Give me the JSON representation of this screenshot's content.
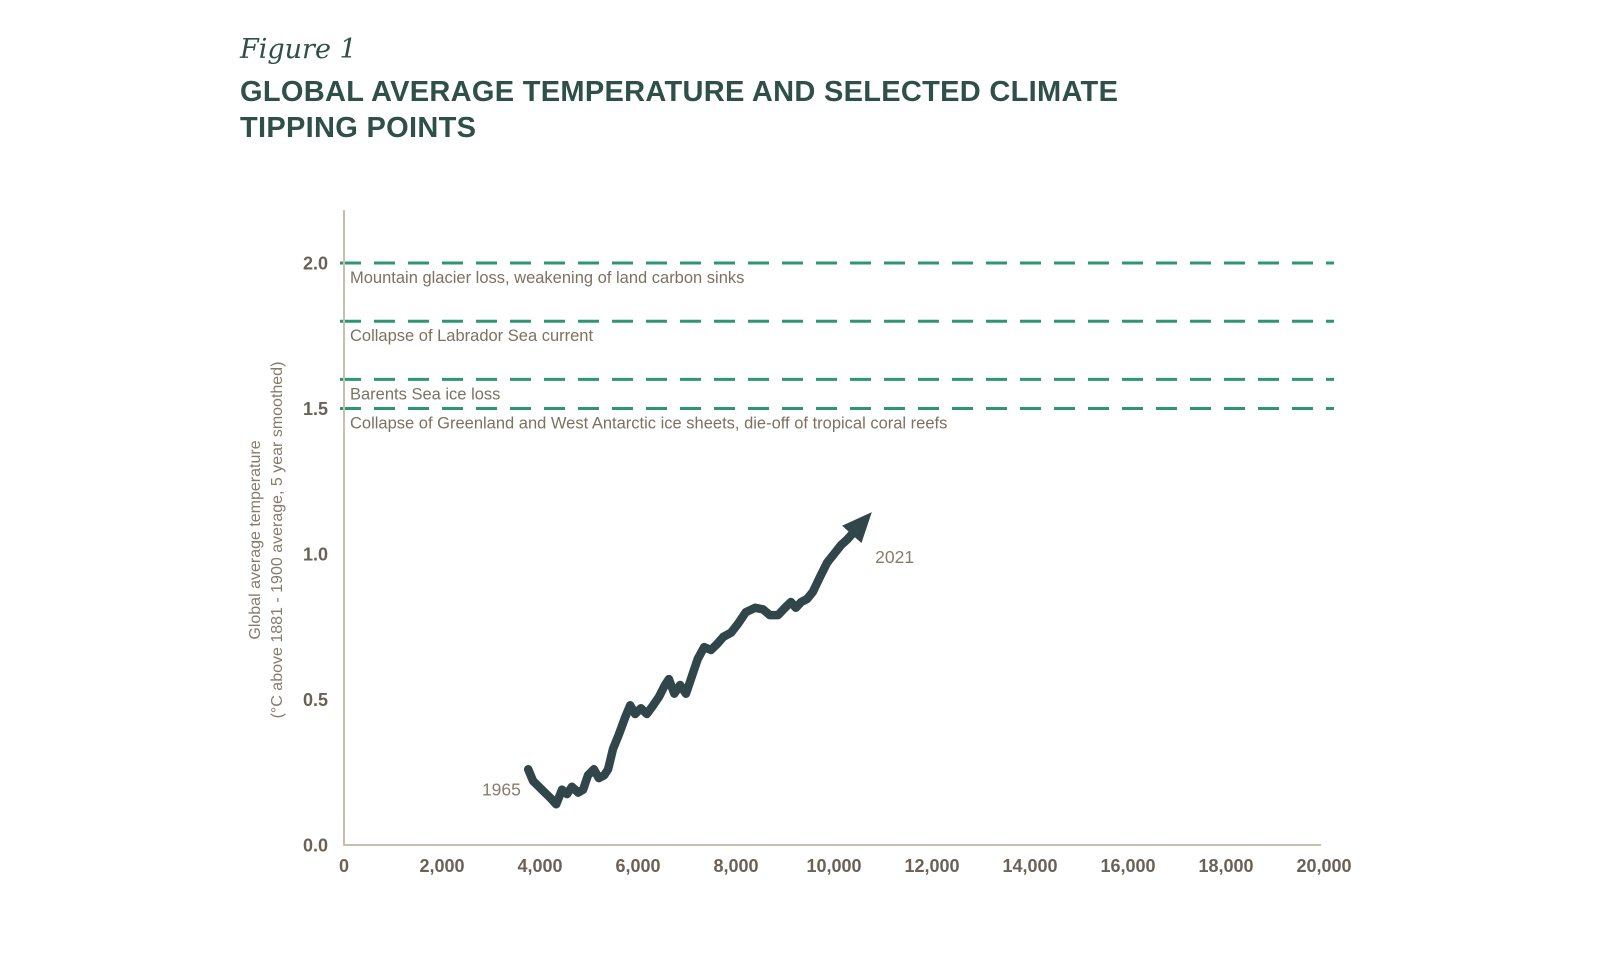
{
  "figure": {
    "label": "Figure 1",
    "title": "GLOBAL AVERAGE TEMPERATURE AND SELECTED CLIMATE TIPPING POINTS",
    "title_lines": [
      "GLOBAL AVERAGE TEMPERATURE AND SELECTED CLIMATE",
      "TIPPING POINTS"
    ]
  },
  "chart_data": {
    "type": "line",
    "title": "Global average temperature and selected climate tipping points",
    "xlabel": "",
    "ylabel": "Global average temperature (°C above 1881 - 1900 average, 5 year smoothed)",
    "ylabel_lines": [
      "Global average temperature",
      "(°C above 1881 - 1900 average, 5 year smoothed)"
    ],
    "xlim": [
      0,
      20000
    ],
    "ylim": [
      0,
      2.2
    ],
    "grid": false,
    "legend": "none",
    "x_ticks": [
      {
        "value": 0,
        "label": "0"
      },
      {
        "value": 2000,
        "label": "2,000"
      },
      {
        "value": 4000,
        "label": "4,000"
      },
      {
        "value": 6000,
        "label": "6,000"
      },
      {
        "value": 8000,
        "label": "8,000"
      },
      {
        "value": 10000,
        "label": "10,000"
      },
      {
        "value": 12000,
        "label": "12,000"
      },
      {
        "value": 14000,
        "label": "14,000"
      },
      {
        "value": 16000,
        "label": "16,000"
      },
      {
        "value": 18000,
        "label": "18,000"
      },
      {
        "value": 20000,
        "label": "20,000"
      }
    ],
    "y_ticks": [
      {
        "value": 0.0,
        "label": "0.0"
      },
      {
        "value": 0.5,
        "label": "0.5"
      },
      {
        "value": 1.0,
        "label": "1.0"
      },
      {
        "value": 1.5,
        "label": "1.5"
      },
      {
        "value": 2.0,
        "label": "2.0"
      }
    ],
    "thresholds": [
      {
        "value": 2.0,
        "label": "Mountain glacier loss, weakening of land carbon sinks"
      },
      {
        "value": 1.8,
        "label": "Collapse of Labrador Sea current"
      },
      {
        "value": 1.6,
        "label": "Barents Sea ice loss"
      },
      {
        "value": 1.5,
        "label": "Collapse of Greenland and West Antarctic ice sheets, die-off of tropical coral reefs"
      }
    ],
    "series": [
      {
        "name": "Global average temperature, 5 year smoothed, 1965-2021",
        "points": [
          [
            3760,
            0.26
          ],
          [
            3860,
            0.22
          ],
          [
            4100,
            0.18
          ],
          [
            4220,
            0.16
          ],
          [
            4330,
            0.14
          ],
          [
            4450,
            0.19
          ],
          [
            4550,
            0.175
          ],
          [
            4650,
            0.2
          ],
          [
            4780,
            0.18
          ],
          [
            4880,
            0.19
          ],
          [
            4980,
            0.24
          ],
          [
            5100,
            0.26
          ],
          [
            5200,
            0.23
          ],
          [
            5310,
            0.24
          ],
          [
            5390,
            0.26
          ],
          [
            5490,
            0.33
          ],
          [
            5610,
            0.38
          ],
          [
            5740,
            0.44
          ],
          [
            5840,
            0.48
          ],
          [
            5940,
            0.45
          ],
          [
            6060,
            0.47
          ],
          [
            6180,
            0.45
          ],
          [
            6310,
            0.48
          ],
          [
            6430,
            0.51
          ],
          [
            6550,
            0.55
          ],
          [
            6630,
            0.57
          ],
          [
            6740,
            0.52
          ],
          [
            6860,
            0.55
          ],
          [
            6980,
            0.52
          ],
          [
            7100,
            0.58
          ],
          [
            7220,
            0.64
          ],
          [
            7350,
            0.68
          ],
          [
            7490,
            0.67
          ],
          [
            7610,
            0.69
          ],
          [
            7740,
            0.715
          ],
          [
            7900,
            0.73
          ],
          [
            8040,
            0.76
          ],
          [
            8200,
            0.8
          ],
          [
            8390,
            0.815
          ],
          [
            8550,
            0.81
          ],
          [
            8690,
            0.79
          ],
          [
            8860,
            0.79
          ],
          [
            9000,
            0.815
          ],
          [
            9120,
            0.835
          ],
          [
            9220,
            0.815
          ],
          [
            9330,
            0.835
          ],
          [
            9450,
            0.845
          ],
          [
            9570,
            0.87
          ],
          [
            9710,
            0.92
          ],
          [
            9860,
            0.97
          ],
          [
            10000,
            1.0
          ],
          [
            10140,
            1.03
          ],
          [
            10270,
            1.05
          ],
          [
            10430,
            1.08
          ]
        ],
        "arrow_end": true
      }
    ],
    "annotations": [
      {
        "text": "1965",
        "x": 3610,
        "y": 0.19,
        "anchor": "end"
      },
      {
        "text": "2021",
        "x": 10840,
        "y": 0.99,
        "anchor": "start"
      }
    ],
    "colors": {
      "title_text": "#2f4f49",
      "threshold_line": "#2d9673",
      "threshold_label_text": "#7d7163",
      "series_line": "#31464a",
      "axis_line": "#c9bfb1",
      "tick_text": "#6b6156",
      "axis_title_text": "#857b6d",
      "annotation_text": "#8a7c6c"
    }
  }
}
